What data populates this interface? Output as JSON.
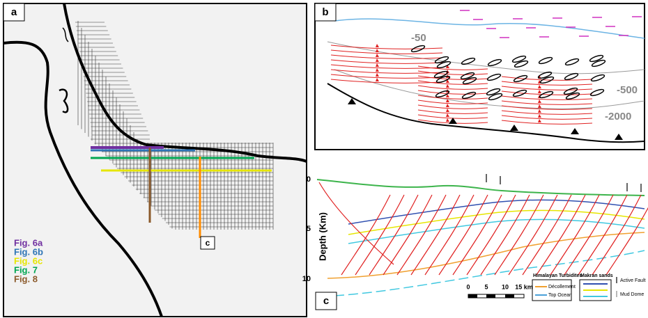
{
  "panel_a": {
    "label": "a",
    "section_label": "c",
    "legend": [
      {
        "text": "Fig. 6a",
        "color": "#7030a0"
      },
      {
        "text": "Fig. 6b",
        "color": "#2e75b6"
      },
      {
        "text": "Fig. 6c",
        "color": "#e6e600"
      },
      {
        "text": "Fig. 7",
        "color": "#00a651"
      },
      {
        "text": "Fig. 8",
        "color": "#8b5a2b"
      }
    ]
  },
  "panel_b": {
    "label": "b",
    "contours": [
      "-50",
      "-500",
      "-2000"
    ]
  },
  "panel_c": {
    "label": "c",
    "axis_title": "Depth (Km)",
    "depth_ticks": [
      "0",
      "5",
      "10"
    ],
    "scale": [
      "0",
      "5",
      "10",
      "15 km"
    ],
    "legend": {
      "group_1": "Himalayan Turbidites",
      "group_2": "Makran sands",
      "decollement": "Décollement",
      "top_ocean": "Top Ocean",
      "active_fault": "Active Fault",
      "mud_dome": "Mud Dome"
    }
  }
}
